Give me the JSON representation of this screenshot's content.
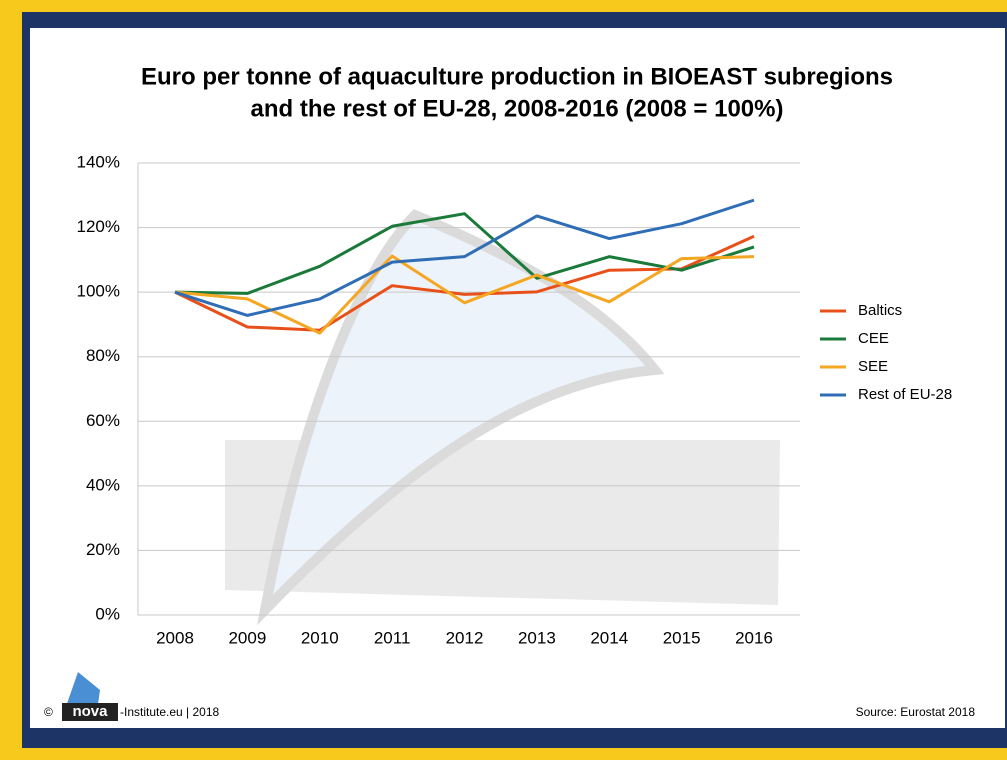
{
  "chart_data": {
    "type": "line",
    "title": [
      "Euro per tonne of aquaculture production in BIOEAST subregions",
      "and the rest of EU-28, 2008-2016 (2008 = 100%)"
    ],
    "categories": [
      "2008",
      "2009",
      "2010",
      "2011",
      "2012",
      "2013",
      "2014",
      "2015",
      "2016"
    ],
    "series": [
      {
        "name": "Baltics",
        "color": "#e8501a",
        "values": [
          100,
          89.2,
          88.2,
          102,
          99.3,
          100.1,
          106.8,
          107.2,
          117.3
        ]
      },
      {
        "name": "CEE",
        "color": "#1a7a3a",
        "values": [
          100,
          99.6,
          108,
          120.4,
          124.3,
          104.3,
          111,
          106.8,
          114
        ]
      },
      {
        "name": "SEE",
        "color": "#f5a623",
        "values": [
          100,
          97.9,
          87.3,
          111.2,
          96.7,
          105.3,
          97,
          110.4,
          111
        ]
      },
      {
        "name": "Rest of EU-28",
        "color": "#2f6db5",
        "values": [
          100,
          92.8,
          97.9,
          109.3,
          111,
          123.6,
          116.6,
          121.2,
          128.5
        ]
      }
    ],
    "ylim": [
      0,
      140
    ],
    "yticks": [
      {
        "value": 0,
        "label": "0%"
      },
      {
        "value": 20,
        "label": "20%"
      },
      {
        "value": 40,
        "label": "40%"
      },
      {
        "value": 60,
        "label": "60%"
      },
      {
        "value": 80,
        "label": "80%"
      },
      {
        "value": 100,
        "label": "100%"
      },
      {
        "value": 120,
        "label": "120%"
      },
      {
        "value": 140,
        "label": "140%"
      }
    ],
    "grid": true,
    "legend": "right"
  },
  "footer": {
    "copyright": "©",
    "logo": "nova",
    "credit": "-Institute.eu | 2018",
    "source": "Source: Eurostat 2018"
  }
}
